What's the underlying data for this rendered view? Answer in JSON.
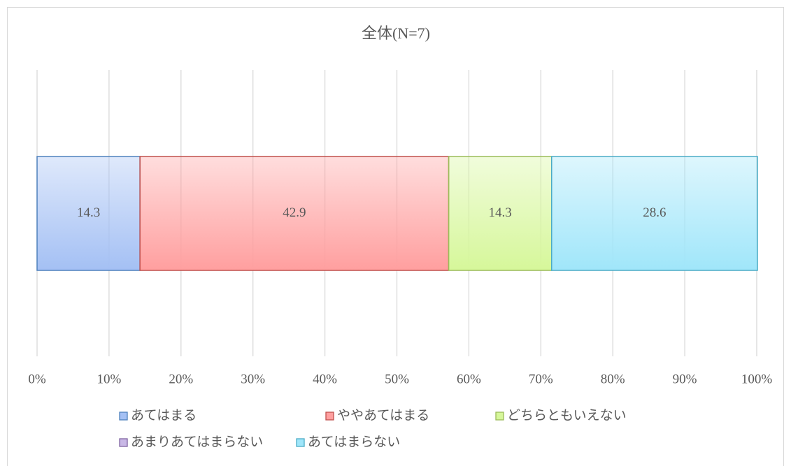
{
  "chart_data": {
    "type": "stacked-bar-horizontal",
    "title": "全体(N=7)",
    "categories": [
      null
    ],
    "series": [
      {
        "name": "あてはまる",
        "color": "#4f81bd",
        "fill": "#a4c0f4",
        "values": [
          14.3
        ]
      },
      {
        "name": "ややあてはまる",
        "color": "#c0504d",
        "fill": "#ff9f9f",
        "values": [
          42.9
        ]
      },
      {
        "name": "どちらともいえない",
        "color": "#9bbb59",
        "fill": "#d6f79a",
        "values": [
          14.3
        ]
      },
      {
        "name": "あまりあてはまらない",
        "color": "#8064a2",
        "fill": "#c9b8e6",
        "values": [
          0
        ]
      },
      {
        "name": "あてはまらない",
        "color": "#4bacc6",
        "fill": "#a0e6fa",
        "values": [
          28.6
        ]
      }
    ],
    "xlim": [
      0,
      100
    ],
    "xticks": [
      {
        "value": 0,
        "label": "0%"
      },
      {
        "value": 10,
        "label": "10%"
      },
      {
        "value": 20,
        "label": "20%"
      },
      {
        "value": 30,
        "label": "30%"
      },
      {
        "value": 40,
        "label": "40%"
      },
      {
        "value": 50,
        "label": "50%"
      },
      {
        "value": 60,
        "label": "60%"
      },
      {
        "value": 70,
        "label": "70%"
      },
      {
        "value": 80,
        "label": "80%"
      },
      {
        "value": 90,
        "label": "90%"
      },
      {
        "value": 100,
        "label": "100%"
      }
    ],
    "grid": true,
    "legend": "bottom"
  }
}
